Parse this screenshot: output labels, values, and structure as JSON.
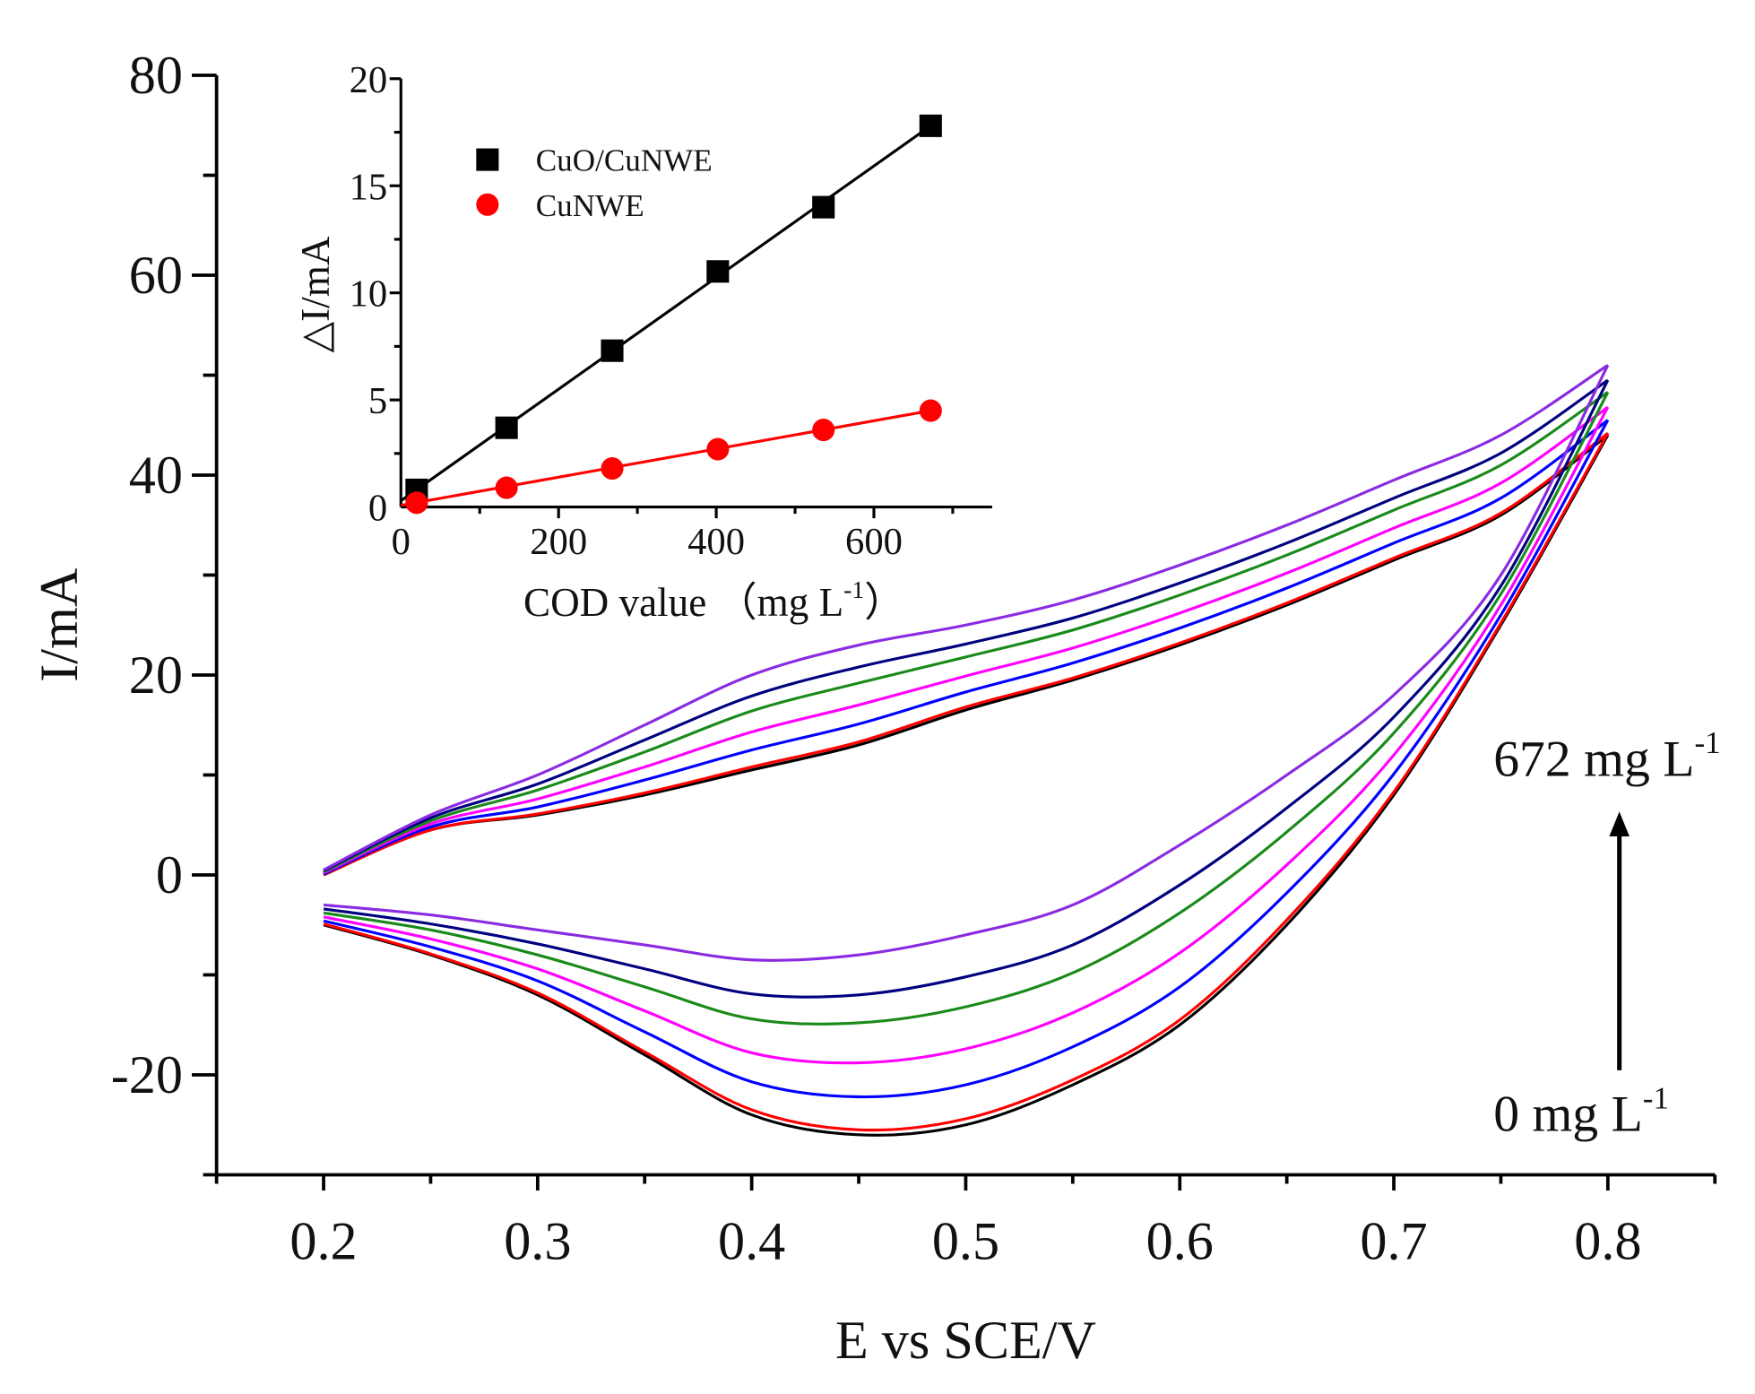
{
  "chart_data": [
    {
      "type": "line",
      "xlabel": "E vs SCE/V",
      "ylabel": "I/mA",
      "xlim": [
        0.15,
        0.85
      ],
      "ylim": [
        -30,
        80
      ],
      "xticks": [
        "0.2",
        "0.3",
        "0.4",
        "0.5",
        "0.6",
        "0.7",
        "0.8"
      ],
      "yticks": [
        "-20",
        "0",
        "20",
        "40",
        "60",
        "80"
      ],
      "annotations": {
        "top": "672 mg L",
        "top_sup": "-1",
        "bottom": "0 mg L",
        "bottom_sup": "-1"
      },
      "forward_x": [
        0.2,
        0.25,
        0.3,
        0.35,
        0.4,
        0.45,
        0.5,
        0.55,
        0.6,
        0.65,
        0.7,
        0.75,
        0.8
      ],
      "reverse_x": [
        0.8,
        0.75,
        0.7,
        0.65,
        0.6,
        0.55,
        0.5,
        0.45,
        0.4,
        0.35,
        0.3,
        0.25,
        0.2
      ],
      "series": [
        {
          "color": "#000000",
          "forward": [
            0,
            4.5,
            6,
            8,
            10.5,
            13,
            16.5,
            19.5,
            23,
            27,
            31.5,
            36,
            44
          ],
          "reverse": [
            44,
            25,
            8,
            -5,
            -15,
            -21,
            -25,
            -26,
            -24,
            -18,
            -12,
            -8,
            -5
          ]
        },
        {
          "color": "#ff0000",
          "forward": [
            0,
            4.5,
            6.1,
            8.2,
            10.8,
            13.3,
            16.8,
            19.7,
            23.2,
            27.2,
            31.7,
            36.2,
            44.2
          ],
          "reverse": [
            44.2,
            25.2,
            8.3,
            -4.5,
            -14.5,
            -20.5,
            -24.4,
            -25.5,
            -23.5,
            -17.7,
            -11.8,
            -7.9,
            -4.9
          ]
        },
        {
          "color": "#0000ff",
          "forward": [
            0.1,
            4.8,
            6.8,
            9.5,
            12.5,
            15.1,
            18.3,
            21.2,
            24.7,
            28.7,
            33.2,
            37.7,
            45.5
          ],
          "reverse": [
            45.5,
            26,
            10.1,
            -1.8,
            -11.2,
            -17.2,
            -21,
            -22.2,
            -20.7,
            -15.7,
            -10.6,
            -7.2,
            -4.6
          ]
        },
        {
          "color": "#ff00ff",
          "forward": [
            0.2,
            5.1,
            7.6,
            10.8,
            14.3,
            17,
            19.9,
            22.7,
            26.2,
            30.2,
            34.7,
            39.2,
            46.8
          ],
          "reverse": [
            46.8,
            27,
            12,
            1,
            -7.8,
            -13.8,
            -17.4,
            -18.8,
            -17.8,
            -13.6,
            -9.4,
            -6.4,
            -4.2
          ]
        },
        {
          "color": "#1a8a1a",
          "forward": [
            0.3,
            5.4,
            8.5,
            12.3,
            16.4,
            19.2,
            21.8,
            24.5,
            28,
            32,
            36.5,
            41,
            48.3
          ],
          "reverse": [
            48.3,
            28.1,
            14.2,
            4.3,
            -3.8,
            -9.8,
            -13.2,
            -14.8,
            -14.4,
            -11.2,
            -8,
            -5.5,
            -3.8
          ]
        },
        {
          "color": "#000080",
          "forward": [
            0.4,
            5.7,
            9.1,
            13.5,
            17.9,
            20.8,
            23.1,
            25.7,
            29.2,
            33.2,
            37.7,
            42.2,
            49.5
          ],
          "reverse": [
            49.5,
            28.9,
            15.8,
            6.7,
            -1,
            -7,
            -10.2,
            -12,
            -11.9,
            -9.4,
            -6.9,
            -4.9,
            -3.4
          ]
        },
        {
          "color": "#8a2be2",
          "forward": [
            0.5,
            6,
            10,
            15,
            20,
            23,
            25,
            27.5,
            31,
            35,
            39.5,
            44,
            51
          ],
          "reverse": [
            51,
            30,
            18,
            10,
            3,
            -3,
            -6,
            -8,
            -8.5,
            -7,
            -5.5,
            -4,
            -3
          ]
        }
      ]
    },
    {
      "type": "scatter",
      "xlabel": "COD value  （mg L",
      "xlabel_sup": "-1",
      "xlabel_end": "）",
      "ylabel": "△I/mA",
      "xlim": [
        0,
        750
      ],
      "ylim": [
        0,
        20
      ],
      "xticks": [
        "0",
        "200",
        "400",
        "600"
      ],
      "yticks": [
        "0",
        "5",
        "10",
        "15",
        "20"
      ],
      "legend": "top-left",
      "series": [
        {
          "name": "CuO/CuNWE",
          "color": "#000000",
          "marker": "square",
          "x": [
            20,
            134,
            268,
            402,
            536,
            672
          ],
          "y": [
            0.8,
            3.7,
            7.3,
            11.0,
            14.0,
            17.8
          ]
        },
        {
          "name": "CuNWE",
          "color": "#ff0000",
          "marker": "circle",
          "x": [
            20,
            134,
            268,
            402,
            536,
            672
          ],
          "y": [
            0.2,
            0.9,
            1.8,
            2.7,
            3.6,
            4.5
          ]
        }
      ]
    }
  ]
}
